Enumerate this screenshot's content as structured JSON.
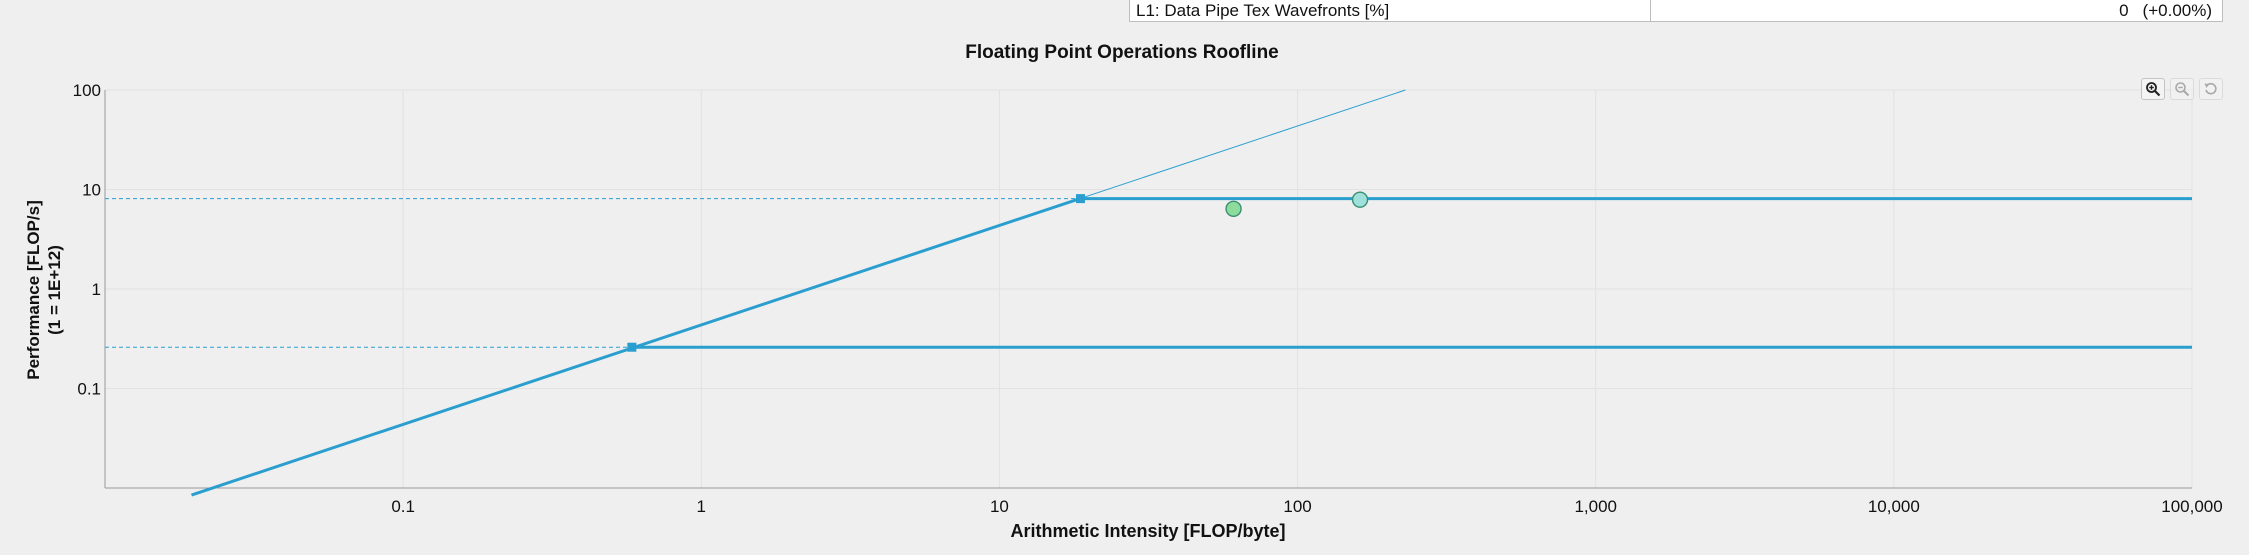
{
  "metric_row": {
    "label": "L1: Data Pipe Tex Wavefronts [%]",
    "value": "0",
    "delta": "(+0.00%)"
  },
  "toolbar": {
    "zoom_in_icon": "zoom-in-icon",
    "zoom_out_icon": "zoom-out-icon",
    "reset_icon": "reset-icon"
  },
  "colors": {
    "roof": "#2a9fcf",
    "point_green": "#8edc9c",
    "point_blue": "#9fe0da",
    "grid": "#e2e2e2"
  },
  "chart_data": {
    "type": "line",
    "title": "Floating Point Operations Roofline",
    "xlabel": "Arithmetic Intensity [FLOP/byte]",
    "ylabel": "Performance [FLOP/s]",
    "ylabel_sub": "(1 = 1E+12)",
    "x_scale": "log",
    "y_scale": "log",
    "xlim": [
      0.01,
      100000
    ],
    "ylim": [
      0.01,
      100
    ],
    "x_ticks": [
      0.1,
      1,
      10,
      100,
      1000,
      10000,
      100000
    ],
    "x_tick_labels": [
      "0.1",
      "1",
      "10",
      "100",
      "1,000",
      "10,000",
      "100,000"
    ],
    "y_ticks": [
      0.1,
      1,
      10,
      100
    ],
    "y_tick_labels": [
      "0.1",
      "1",
      "10",
      "100"
    ],
    "grid": true,
    "bandwidth_line": {
      "x": [
        0.0195,
        230
      ],
      "y": [
        0.0085,
        100
      ]
    },
    "roofs": [
      {
        "ridge_x": 0.585,
        "peak": 0.26,
        "x_end": 100000
      },
      {
        "ridge_x": 18.7,
        "peak": 8.1,
        "x_end": 100000
      }
    ],
    "points": [
      {
        "x": 61,
        "y": 6.4,
        "color": "#8edc9c"
      },
      {
        "x": 162,
        "y": 7.9,
        "color": "#9fe0da"
      }
    ]
  }
}
